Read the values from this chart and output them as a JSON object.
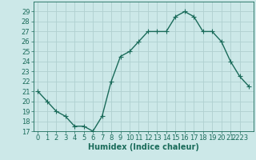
{
  "x": [
    0,
    1,
    2,
    3,
    4,
    5,
    6,
    7,
    8,
    9,
    10,
    11,
    12,
    13,
    14,
    15,
    16,
    17,
    18,
    19,
    20,
    21,
    22,
    23
  ],
  "y": [
    21,
    20,
    19,
    18.5,
    17.5,
    17.5,
    17,
    18.5,
    22,
    24.5,
    25,
    26,
    27,
    27,
    27,
    28.5,
    29,
    28.5,
    27,
    27,
    26,
    24,
    22.5,
    21.5
  ],
  "line_color": "#1a6b5a",
  "marker": "+",
  "marker_size": 4,
  "bg_color": "#cce8e8",
  "grid_color": "#b0d0d0",
  "xlabel": "Humidex (Indice chaleur)",
  "xlim": [
    -0.5,
    23.5
  ],
  "ylim": [
    17,
    30
  ],
  "yticks": [
    17,
    18,
    19,
    20,
    21,
    22,
    23,
    24,
    25,
    26,
    27,
    28,
    29
  ],
  "label_fontsize": 7,
  "tick_fontsize": 6,
  "linewidth": 1.0
}
